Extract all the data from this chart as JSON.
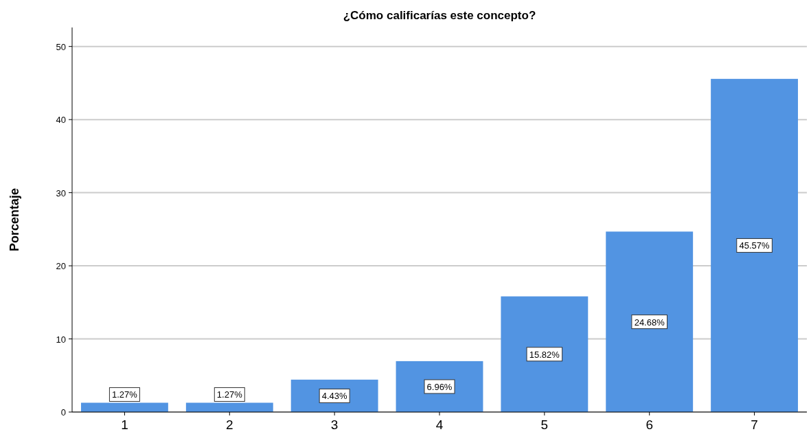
{
  "chart_data": {
    "type": "bar",
    "title": "¿Cómo calificarías este concepto?",
    "ylabel": "Porcentaje",
    "categories": [
      "1",
      "2",
      "3",
      "4",
      "5",
      "6",
      "7"
    ],
    "values": [
      1.27,
      1.27,
      4.43,
      6.96,
      15.82,
      24.68,
      45.57
    ],
    "value_labels": [
      "1.27%",
      "1.27%",
      "4.43%",
      "6.96%",
      "15.82%",
      "24.68%",
      "45.57%"
    ],
    "color": "#5294e2",
    "ylim": [
      0,
      52.6
    ],
    "yticks": [
      0,
      10,
      20,
      30,
      40,
      50
    ],
    "grid": "y"
  }
}
